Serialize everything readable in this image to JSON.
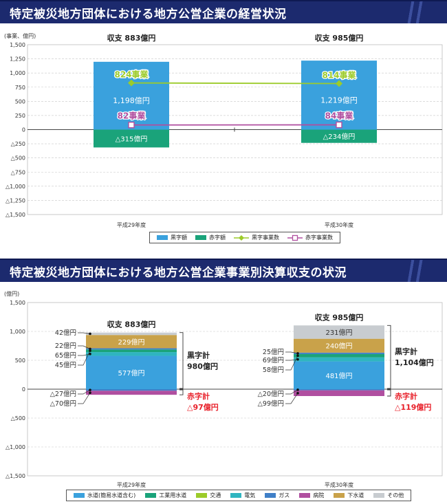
{
  "header1": {
    "title": "特定被災地方団体における地方公営企業の経営状況"
  },
  "header2": {
    "title": "特定被災地方団体における地方公営企業事業別決算収支の状況"
  },
  "colors": {
    "surplus_bar": "#3aa1dd",
    "deficit_bar": "#1aa37a",
    "surplus_line": "#9ccb2a",
    "deficit_line": "#b04fa0",
    "water": "#3aa1dd",
    "industrial_water": "#1aa37a",
    "transport": "#9ccb2a",
    "electric": "#2fb5c0",
    "gas": "#3f7fc7",
    "hospital": "#b04fa0",
    "sewer": "#c9a24a",
    "other": "#c8ccd0",
    "red_text": "#e8202a"
  },
  "chart_data": [
    {
      "type": "bar",
      "ylabel": "(事業、億円)",
      "ylim": [
        -1500,
        1500
      ],
      "yticks": [
        "1,500",
        "1,250",
        "1,000",
        "750",
        "500",
        "250",
        "0",
        "△250",
        "△500",
        "△750",
        "△1,000",
        "△1,250",
        "△1,500"
      ],
      "categories": [
        "平成29年度",
        "平成30年度"
      ],
      "series": [
        {
          "name": "黒字額",
          "kind": "bar",
          "values": [
            1198,
            1219
          ],
          "labels": [
            "1,198億円",
            "1,219億円"
          ]
        },
        {
          "name": "赤字額",
          "kind": "bar",
          "values": [
            -315,
            -234
          ],
          "labels": [
            "△315億円",
            "△234億円"
          ]
        },
        {
          "name": "黒字事業数",
          "kind": "line",
          "values": [
            824,
            814
          ],
          "labels": [
            "824事業",
            "814事業"
          ]
        },
        {
          "name": "赤字事業数",
          "kind": "line",
          "values": [
            82,
            84
          ],
          "labels": [
            "82事業",
            "84事業"
          ]
        }
      ],
      "totals": [
        "収支 883億円",
        "収支 985億円"
      ],
      "legend_position": "bottom",
      "grid": true
    },
    {
      "type": "bar",
      "ylabel": "(億円)",
      "ylim": [
        -1500,
        1500
      ],
      "yticks": [
        "1,500",
        "1,000",
        "500",
        "0",
        "△500",
        "△1,000",
        "△1,500"
      ],
      "categories": [
        "平成29年度",
        "平成30年度"
      ],
      "series": [
        {
          "name": "水道(簡易水道含む)",
          "values": [
            577,
            481
          ],
          "labels": [
            "577億円",
            "481億円"
          ]
        },
        {
          "name": "工業用水道",
          "values": [
            45,
            58
          ],
          "labels": [
            "45億円",
            "58億円"
          ]
        },
        {
          "name": "交通",
          "values": [
            0,
            0
          ],
          "labels": [
            "",
            ""
          ]
        },
        {
          "name": "電気",
          "values": [
            65,
            69
          ],
          "labels": [
            "65億円",
            "69億円"
          ]
        },
        {
          "name": "ガス",
          "values": [
            22,
            25
          ],
          "labels": [
            "22億円",
            "25億円"
          ]
        },
        {
          "name": "病院",
          "values": [
            -70,
            -99
          ],
          "labels": [
            "△70億円",
            "△99億円"
          ]
        },
        {
          "name": "下水道",
          "values": [
            229,
            240
          ],
          "labels": [
            "229億円",
            "240億円"
          ]
        },
        {
          "name": "その他",
          "values": [
            42,
            231
          ],
          "labels": [
            "42億円",
            "231億円"
          ]
        }
      ],
      "small_deficit": {
        "values": [
          -27,
          -20
        ],
        "labels": [
          "△27億円",
          "△20億円"
        ]
      },
      "totals": [
        "収支 883億円",
        "収支 985億円"
      ],
      "surplus_total_label": "黒字計",
      "surplus_totals": [
        "980億円",
        "1,104億円"
      ],
      "deficit_total_label": "赤字計",
      "deficit_totals": [
        "△97億円",
        "△119億円"
      ],
      "legend_position": "bottom",
      "grid": true
    }
  ]
}
